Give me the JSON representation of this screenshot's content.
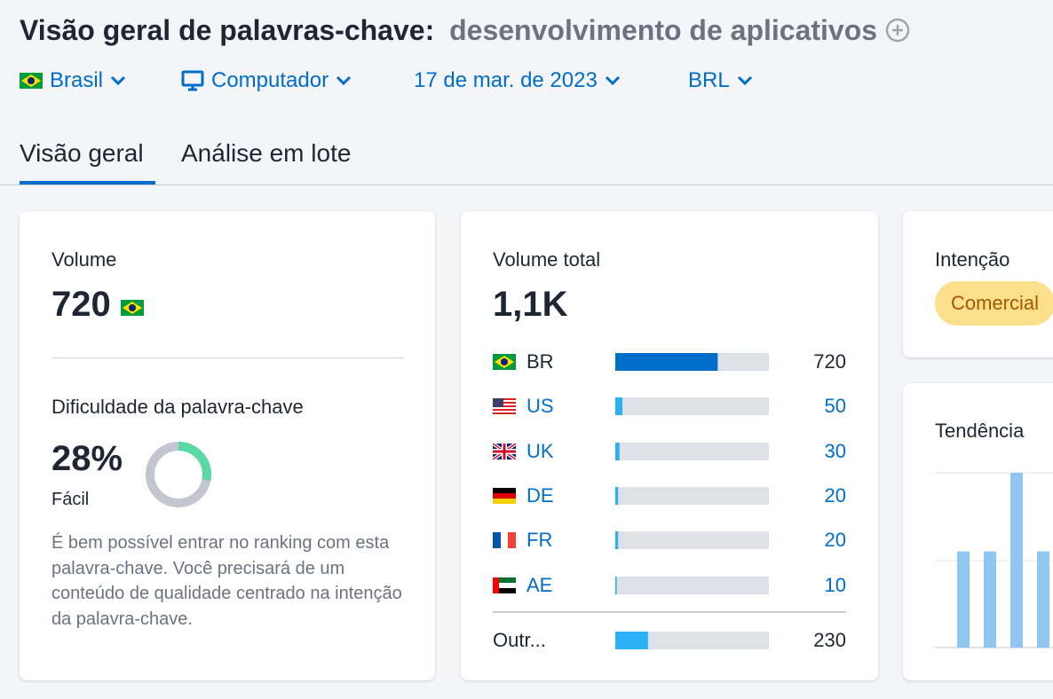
{
  "header": {
    "title": "Visão geral de palavras-chave:",
    "keyword": "desenvolvimento de aplicativos"
  },
  "filters": [
    "Brasil",
    "Computador",
    "17 de mar. de 2023",
    "BRL"
  ],
  "tabs": [
    "Visão geral",
    "Análise em lote"
  ],
  "volume_card": {
    "label": "Volume",
    "value": "720",
    "difficulty_label": "Dificuldade da palavra-chave",
    "difficulty": {
      "value": 28,
      "label": "28%"
    },
    "difficulty_level": "Fácil",
    "description": "É bem possível entrar no ranking com esta palavra-chave. Você precisará de um conteúdo de qualidade centrado na intenção da palavra-chave."
  },
  "total_card": {
    "label": "Volume total",
    "value": "1,1K",
    "countries": [
      {
        "code": "BR",
        "volume": 720
      },
      {
        "code": "US",
        "volume": 50
      },
      {
        "code": "UK",
        "volume": 30
      },
      {
        "code": "DE",
        "volume": 20
      },
      {
        "code": "FR",
        "volume": 20
      },
      {
        "code": "AE",
        "volume": 10
      }
    ],
    "others": {
      "label": "Outr...",
      "volume": 230
    }
  },
  "intent_card": {
    "label": "Intenção",
    "intent": "Comercial"
  },
  "trend_card": {
    "label": "Tendência",
    "values": [
      0.55,
      0.55,
      1,
      0.55
    ]
  }
}
